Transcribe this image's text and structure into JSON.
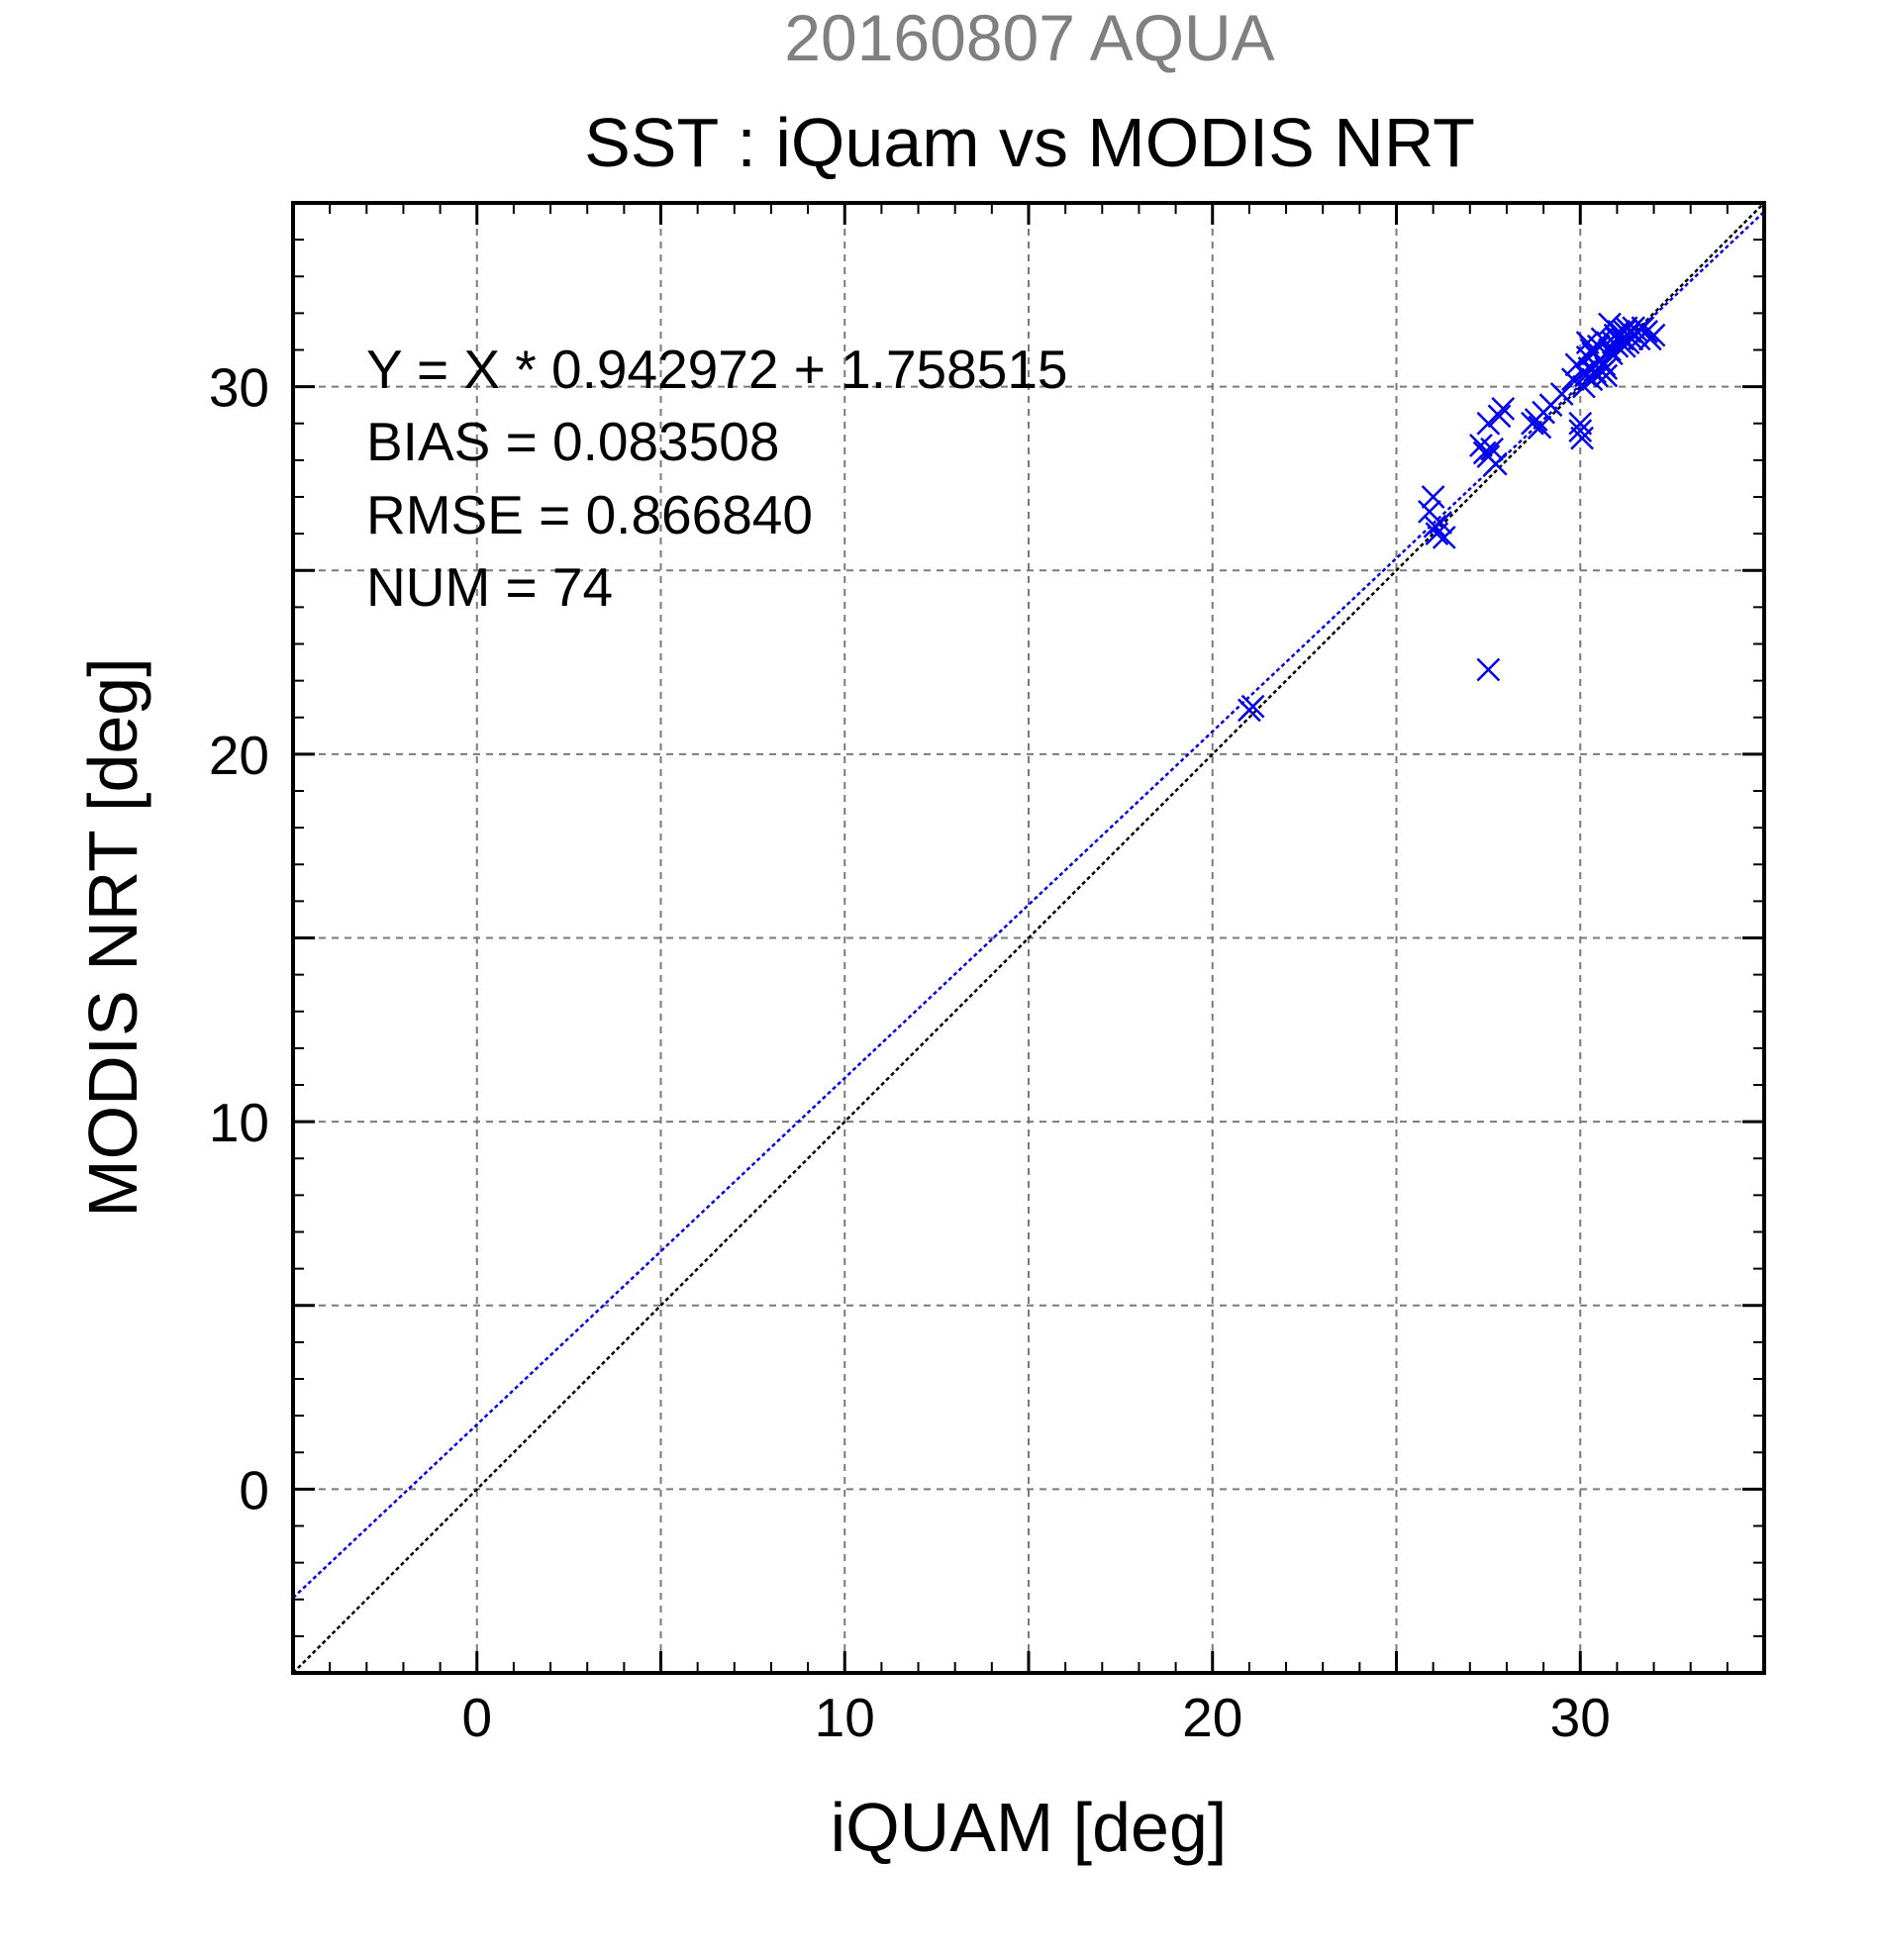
{
  "chart_data": {
    "type": "scatter",
    "supertitle": "20160807 AQUA",
    "title": "SST : iQuam vs MODIS NRT",
    "xlabel": "iQUAM [deg]",
    "ylabel": "MODIS NRT [deg]",
    "xlim": [
      -5,
      35
    ],
    "ylim": [
      -5,
      35
    ],
    "xticks": [
      0,
      10,
      20,
      30
    ],
    "yticks": [
      0,
      10,
      20,
      30
    ],
    "grid_major_step": 5,
    "minor_tick_step": 1,
    "grid": true,
    "annotations": [
      "Y = X * 0.942972 + 1.758515",
      "BIAS = 0.083508",
      "RMSE = 0.866840",
      "NUM = 74"
    ],
    "regression": {
      "slope": 0.942972,
      "intercept": 1.758515,
      "color": "#0000ee"
    },
    "identity_line": {
      "color": "#000000"
    },
    "marker_color": "#0000ee",
    "x": [
      21.0,
      21.1,
      25.9,
      26.0,
      26.05,
      26.1,
      26.2,
      26.3,
      27.3,
      27.4,
      27.5,
      27.6,
      27.5,
      27.7,
      27.8,
      27.9,
      27.5,
      28.7,
      28.8,
      28.9,
      29.0,
      29.2,
      29.5,
      29.8,
      29.9,
      30.0,
      30.0,
      30.05,
      30.1,
      30.1,
      30.2,
      30.15,
      30.2,
      30.25,
      30.3,
      30.3,
      30.35,
      30.4,
      30.4,
      30.45,
      30.5,
      30.5,
      30.55,
      30.6,
      30.6,
      30.65,
      30.7,
      30.7,
      30.8,
      30.85,
      30.9,
      30.95,
      31.0,
      31.0,
      31.05,
      31.1,
      31.1,
      31.15,
      31.2,
      31.2,
      31.25,
      31.3,
      31.3,
      31.35,
      31.4,
      31.45,
      31.5,
      31.55,
      31.6,
      31.7,
      31.8,
      31.9,
      32.0,
      30.8
    ],
    "y": [
      21.2,
      21.3,
      26.6,
      27.0,
      26.2,
      26.0,
      26.3,
      25.9,
      28.4,
      28.2,
      28.1,
      28.3,
      22.3,
      27.9,
      29.2,
      29.4,
      29.0,
      29.0,
      29.1,
      28.9,
      29.3,
      29.5,
      29.8,
      30.2,
      30.6,
      28.8,
      29.0,
      28.6,
      30.4,
      30.0,
      31.2,
      30.3,
      30.8,
      30.5,
      30.2,
      31.0,
      30.9,
      30.4,
      30.6,
      30.3,
      30.5,
      31.1,
      30.7,
      30.4,
      31.3,
      30.6,
      30.3,
      30.5,
      31.0,
      30.9,
      31.2,
      31.4,
      31.3,
      31.1,
      31.5,
      31.2,
      31.4,
      31.3,
      31.5,
      31.1,
      31.6,
      31.4,
      31.2,
      31.5,
      31.3,
      31.6,
      31.4,
      31.5,
      31.3,
      31.6,
      31.5,
      31.3,
      31.4,
      31.7
    ]
  }
}
